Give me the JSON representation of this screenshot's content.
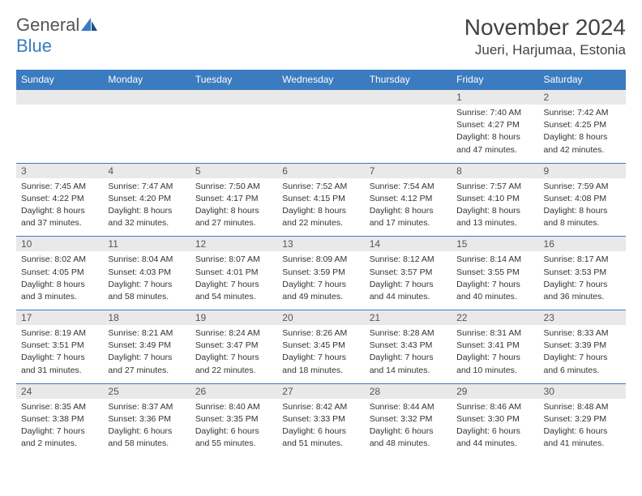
{
  "logo": {
    "text1": "General",
    "text2": "Blue"
  },
  "title": "November 2024",
  "location": "Jueri, Harjumaa, Estonia",
  "colors": {
    "header_bg": "#3b7bbf",
    "header_text": "#ffffff",
    "daynum_bg": "#e9e9e9",
    "border": "#3b7bbf",
    "text": "#333333",
    "title": "#424242"
  },
  "weekdays": [
    "Sunday",
    "Monday",
    "Tuesday",
    "Wednesday",
    "Thursday",
    "Friday",
    "Saturday"
  ],
  "weeks": [
    [
      null,
      null,
      null,
      null,
      null,
      {
        "n": "1",
        "sr": "Sunrise: 7:40 AM",
        "ss": "Sunset: 4:27 PM",
        "d1": "Daylight: 8 hours",
        "d2": "and 47 minutes."
      },
      {
        "n": "2",
        "sr": "Sunrise: 7:42 AM",
        "ss": "Sunset: 4:25 PM",
        "d1": "Daylight: 8 hours",
        "d2": "and 42 minutes."
      }
    ],
    [
      {
        "n": "3",
        "sr": "Sunrise: 7:45 AM",
        "ss": "Sunset: 4:22 PM",
        "d1": "Daylight: 8 hours",
        "d2": "and 37 minutes."
      },
      {
        "n": "4",
        "sr": "Sunrise: 7:47 AM",
        "ss": "Sunset: 4:20 PM",
        "d1": "Daylight: 8 hours",
        "d2": "and 32 minutes."
      },
      {
        "n": "5",
        "sr": "Sunrise: 7:50 AM",
        "ss": "Sunset: 4:17 PM",
        "d1": "Daylight: 8 hours",
        "d2": "and 27 minutes."
      },
      {
        "n": "6",
        "sr": "Sunrise: 7:52 AM",
        "ss": "Sunset: 4:15 PM",
        "d1": "Daylight: 8 hours",
        "d2": "and 22 minutes."
      },
      {
        "n": "7",
        "sr": "Sunrise: 7:54 AM",
        "ss": "Sunset: 4:12 PM",
        "d1": "Daylight: 8 hours",
        "d2": "and 17 minutes."
      },
      {
        "n": "8",
        "sr": "Sunrise: 7:57 AM",
        "ss": "Sunset: 4:10 PM",
        "d1": "Daylight: 8 hours",
        "d2": "and 13 minutes."
      },
      {
        "n": "9",
        "sr": "Sunrise: 7:59 AM",
        "ss": "Sunset: 4:08 PM",
        "d1": "Daylight: 8 hours",
        "d2": "and 8 minutes."
      }
    ],
    [
      {
        "n": "10",
        "sr": "Sunrise: 8:02 AM",
        "ss": "Sunset: 4:05 PM",
        "d1": "Daylight: 8 hours",
        "d2": "and 3 minutes."
      },
      {
        "n": "11",
        "sr": "Sunrise: 8:04 AM",
        "ss": "Sunset: 4:03 PM",
        "d1": "Daylight: 7 hours",
        "d2": "and 58 minutes."
      },
      {
        "n": "12",
        "sr": "Sunrise: 8:07 AM",
        "ss": "Sunset: 4:01 PM",
        "d1": "Daylight: 7 hours",
        "d2": "and 54 minutes."
      },
      {
        "n": "13",
        "sr": "Sunrise: 8:09 AM",
        "ss": "Sunset: 3:59 PM",
        "d1": "Daylight: 7 hours",
        "d2": "and 49 minutes."
      },
      {
        "n": "14",
        "sr": "Sunrise: 8:12 AM",
        "ss": "Sunset: 3:57 PM",
        "d1": "Daylight: 7 hours",
        "d2": "and 44 minutes."
      },
      {
        "n": "15",
        "sr": "Sunrise: 8:14 AM",
        "ss": "Sunset: 3:55 PM",
        "d1": "Daylight: 7 hours",
        "d2": "and 40 minutes."
      },
      {
        "n": "16",
        "sr": "Sunrise: 8:17 AM",
        "ss": "Sunset: 3:53 PM",
        "d1": "Daylight: 7 hours",
        "d2": "and 36 minutes."
      }
    ],
    [
      {
        "n": "17",
        "sr": "Sunrise: 8:19 AM",
        "ss": "Sunset: 3:51 PM",
        "d1": "Daylight: 7 hours",
        "d2": "and 31 minutes."
      },
      {
        "n": "18",
        "sr": "Sunrise: 8:21 AM",
        "ss": "Sunset: 3:49 PM",
        "d1": "Daylight: 7 hours",
        "d2": "and 27 minutes."
      },
      {
        "n": "19",
        "sr": "Sunrise: 8:24 AM",
        "ss": "Sunset: 3:47 PM",
        "d1": "Daylight: 7 hours",
        "d2": "and 22 minutes."
      },
      {
        "n": "20",
        "sr": "Sunrise: 8:26 AM",
        "ss": "Sunset: 3:45 PM",
        "d1": "Daylight: 7 hours",
        "d2": "and 18 minutes."
      },
      {
        "n": "21",
        "sr": "Sunrise: 8:28 AM",
        "ss": "Sunset: 3:43 PM",
        "d1": "Daylight: 7 hours",
        "d2": "and 14 minutes."
      },
      {
        "n": "22",
        "sr": "Sunrise: 8:31 AM",
        "ss": "Sunset: 3:41 PM",
        "d1": "Daylight: 7 hours",
        "d2": "and 10 minutes."
      },
      {
        "n": "23",
        "sr": "Sunrise: 8:33 AM",
        "ss": "Sunset: 3:39 PM",
        "d1": "Daylight: 7 hours",
        "d2": "and 6 minutes."
      }
    ],
    [
      {
        "n": "24",
        "sr": "Sunrise: 8:35 AM",
        "ss": "Sunset: 3:38 PM",
        "d1": "Daylight: 7 hours",
        "d2": "and 2 minutes."
      },
      {
        "n": "25",
        "sr": "Sunrise: 8:37 AM",
        "ss": "Sunset: 3:36 PM",
        "d1": "Daylight: 6 hours",
        "d2": "and 58 minutes."
      },
      {
        "n": "26",
        "sr": "Sunrise: 8:40 AM",
        "ss": "Sunset: 3:35 PM",
        "d1": "Daylight: 6 hours",
        "d2": "and 55 minutes."
      },
      {
        "n": "27",
        "sr": "Sunrise: 8:42 AM",
        "ss": "Sunset: 3:33 PM",
        "d1": "Daylight: 6 hours",
        "d2": "and 51 minutes."
      },
      {
        "n": "28",
        "sr": "Sunrise: 8:44 AM",
        "ss": "Sunset: 3:32 PM",
        "d1": "Daylight: 6 hours",
        "d2": "and 48 minutes."
      },
      {
        "n": "29",
        "sr": "Sunrise: 8:46 AM",
        "ss": "Sunset: 3:30 PM",
        "d1": "Daylight: 6 hours",
        "d2": "and 44 minutes."
      },
      {
        "n": "30",
        "sr": "Sunrise: 8:48 AM",
        "ss": "Sunset: 3:29 PM",
        "d1": "Daylight: 6 hours",
        "d2": "and 41 minutes."
      }
    ]
  ]
}
